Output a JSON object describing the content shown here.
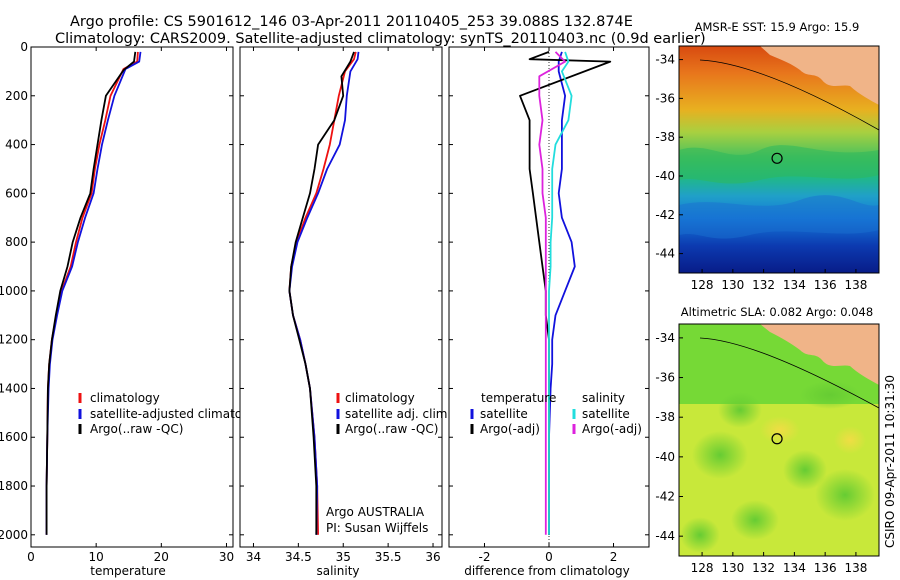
{
  "title": {
    "line1": "Argo profile: CS 5901612_146 03-Apr-2011 20110405_253 39.088S 132.874E",
    "line2": "Climatology: CARS2009. Satellite-adjusted climatology: synTS_20110403.nc (0.9d earlier)"
  },
  "colors": {
    "climatology": "#ee1111",
    "satellite": "#1111dd",
    "argo": "#000000",
    "sal_satellite": "#22dddd",
    "sal_argo": "#dd22dd",
    "land": "#f0b488"
  },
  "chart_data": [
    {
      "type": "line",
      "xlabel": "temperature",
      "xlim": [
        0,
        31
      ],
      "ylim": [
        2050,
        0
      ],
      "xticks": [
        "0",
        "10",
        "20",
        "30"
      ],
      "yticks": [
        "0",
        "200",
        "400",
        "600",
        "800",
        "1000",
        "1200",
        "1400",
        "1600",
        "1800",
        "2000"
      ],
      "legend": [
        "climatology",
        "satellite-adjusted climatology",
        "Argo(..raw -QC)"
      ],
      "series": [
        {
          "name": "climatology",
          "color": "climatology",
          "x": [
            16.4,
            16.3,
            14.2,
            12.2,
            11.4,
            10.5,
            9.8,
            9.3,
            7.9,
            6.9,
            6.1,
            4.7,
            3.9,
            3.2,
            2.8,
            2.6,
            2.5,
            2.4,
            2.4
          ],
          "y": [
            20,
            60,
            90,
            200,
            300,
            400,
            500,
            600,
            700,
            800,
            900,
            1000,
            1100,
            1200,
            1300,
            1400,
            1600,
            1800,
            2000
          ]
        },
        {
          "name": "satellite-adjusted climatology",
          "color": "satellite",
          "x": [
            16.8,
            16.6,
            14.5,
            12.8,
            11.8,
            10.9,
            10.2,
            9.6,
            8.3,
            7.2,
            6.3,
            4.8,
            4.0,
            3.3,
            2.9,
            2.7,
            2.5,
            2.4,
            2.4
          ],
          "y": [
            20,
            60,
            90,
            200,
            300,
            400,
            500,
            600,
            700,
            800,
            900,
            1000,
            1100,
            1200,
            1300,
            1400,
            1600,
            1800,
            2000
          ]
        },
        {
          "name": "Argo(..raw -QC)",
          "color": "argo",
          "x": [
            16.0,
            15.8,
            14.2,
            11.5,
            10.8,
            10.2,
            9.6,
            9.1,
            7.6,
            6.4,
            5.6,
            4.5,
            3.8,
            3.2,
            2.8,
            2.6,
            2.5,
            2.4,
            2.4
          ],
          "y": [
            20,
            60,
            95,
            200,
            300,
            400,
            500,
            600,
            700,
            800,
            900,
            1000,
            1100,
            1200,
            1300,
            1400,
            1600,
            1800,
            2000
          ]
        }
      ]
    },
    {
      "type": "line",
      "xlabel": "salinity",
      "xlim": [
        33.85,
        36.1
      ],
      "ylim": [
        2050,
        0
      ],
      "xticks": [
        "34",
        "34.5",
        "35",
        "35.5",
        "36"
      ],
      "legend": [
        "climatology",
        "satellite adj. clim.",
        "Argo(..raw -QC)"
      ],
      "annotation": [
        "Argo AUSTRALIA",
        "PI: Susan Wijffels"
      ],
      "series": [
        {
          "name": "climatology",
          "color": "climatology",
          "x": [
            35.14,
            35.12,
            35.02,
            34.95,
            34.9,
            34.85,
            34.78,
            34.7,
            34.58,
            34.48,
            34.42,
            34.4,
            34.44,
            34.52,
            34.58,
            34.63,
            34.68,
            34.71,
            34.72
          ],
          "y": [
            20,
            50,
            100,
            200,
            300,
            400,
            500,
            600,
            700,
            800,
            900,
            1000,
            1100,
            1200,
            1300,
            1400,
            1600,
            1800,
            2000
          ]
        },
        {
          "name": "satellite adj. clim.",
          "color": "satellite",
          "x": [
            35.17,
            35.16,
            35.08,
            35.04,
            35.02,
            34.96,
            34.82,
            34.72,
            34.6,
            34.49,
            34.43,
            34.4,
            34.44,
            34.52,
            34.58,
            34.63,
            34.68,
            34.71,
            34.7
          ],
          "y": [
            20,
            50,
            100,
            200,
            300,
            400,
            500,
            600,
            700,
            800,
            900,
            1000,
            1100,
            1200,
            1300,
            1400,
            1600,
            1800,
            2000
          ]
        },
        {
          "name": "Argo(..raw -QC)",
          "color": "argo",
          "x": [
            35.12,
            35.08,
            34.98,
            35.0,
            34.9,
            34.72,
            34.68,
            34.63,
            34.55,
            34.47,
            34.42,
            34.4,
            34.44,
            34.51,
            34.58,
            34.63,
            34.67,
            34.7,
            34.7
          ],
          "y": [
            20,
            60,
            120,
            200,
            300,
            400,
            500,
            600,
            700,
            800,
            900,
            1000,
            1100,
            1200,
            1300,
            1400,
            1600,
            1800,
            2000
          ]
        }
      ]
    },
    {
      "type": "line",
      "xlabel": "difference from climatology",
      "xlim": [
        -3.1,
        3.1
      ],
      "ylim": [
        2050,
        0
      ],
      "xticks": [
        "-2",
        "0",
        "2"
      ],
      "legend_temperature_header": "temperature",
      "legend_salinity_header": "salinity",
      "legend": [
        "satellite",
        "Argo(-adj)",
        "satellite",
        "Argo(-adj)"
      ],
      "series": [
        {
          "name": "temperature satellite",
          "color": "satellite",
          "x": [
            0.4,
            0.3,
            0.3,
            0.5,
            0.4,
            0.4,
            0.4,
            0.3,
            0.4,
            0.7,
            0.8,
            0.5,
            0.2,
            0.1,
            0.1,
            0.05,
            0.0,
            0.0,
            0.0
          ],
          "y": [
            20,
            60,
            100,
            200,
            300,
            400,
            500,
            600,
            700,
            800,
            900,
            1000,
            1100,
            1200,
            1300,
            1400,
            1600,
            1800,
            2000
          ]
        },
        {
          "name": "temperature Argo(-adj)",
          "color": "argo",
          "x": [
            0.0,
            -0.6,
            1.9,
            -0.9,
            -0.6,
            -0.6,
            -0.6,
            -0.5,
            -0.4,
            -0.3,
            -0.2,
            -0.1,
            -0.1,
            0.0,
            0.0,
            0.0,
            0.0,
            0.0,
            0.0
          ],
          "y": [
            20,
            50,
            60,
            200,
            300,
            400,
            500,
            600,
            700,
            800,
            900,
            1000,
            1100,
            1200,
            1300,
            1400,
            1600,
            1800,
            2000
          ]
        },
        {
          "name": "salinity satellite",
          "color": "sal_satellite",
          "x": [
            0.5,
            0.6,
            0.4,
            0.7,
            0.6,
            0.2,
            0.1,
            0.1,
            0.1,
            0.05,
            0.05,
            0.0,
            0.0,
            0.0,
            0.0,
            0.0,
            0.0,
            0.0,
            0.0
          ],
          "y": [
            20,
            60,
            100,
            200,
            300,
            400,
            500,
            600,
            700,
            800,
            900,
            1000,
            1100,
            1200,
            1300,
            1400,
            1600,
            1800,
            2000
          ]
        },
        {
          "name": "salinity Argo(-adj)",
          "color": "sal_argo",
          "x": [
            0.2,
            0.5,
            -0.3,
            -0.3,
            -0.2,
            -0.3,
            -0.2,
            -0.2,
            -0.1,
            -0.1,
            -0.1,
            -0.1,
            -0.1,
            -0.1,
            -0.1,
            -0.1,
            -0.1,
            -0.1,
            -0.1
          ],
          "y": [
            20,
            60,
            120,
            200,
            300,
            400,
            500,
            600,
            700,
            800,
            900,
            1000,
            1100,
            1200,
            1300,
            1400,
            1600,
            1800,
            2000
          ]
        }
      ]
    },
    {
      "type": "heatmap",
      "title": "AMSR-E SST: 15.9 Argo: 15.9",
      "xlim": [
        126.5,
        139.5
      ],
      "ylim": [
        -45,
        -33.3
      ],
      "xticks": [
        "128",
        "130",
        "132",
        "134",
        "136",
        "138"
      ],
      "yticks": [
        "-34",
        "-36",
        "-38",
        "-40",
        "-42",
        "-44"
      ],
      "marker": {
        "lon": 132.874,
        "lat": -39.088
      }
    },
    {
      "type": "heatmap",
      "title": "Altimetric SLA: 0.082 Argo: 0.048",
      "xlim": [
        126.5,
        139.5
      ],
      "ylim": [
        -45,
        -33.3
      ],
      "xticks": [
        "128",
        "130",
        "132",
        "134",
        "136",
        "138"
      ],
      "yticks": [
        "-34",
        "-36",
        "-38",
        "-40",
        "-42",
        "-44"
      ],
      "marker": {
        "lon": 132.874,
        "lat": -39.088
      }
    }
  ],
  "stamp": "CSIRO 09-Apr-2011 10:31:30"
}
